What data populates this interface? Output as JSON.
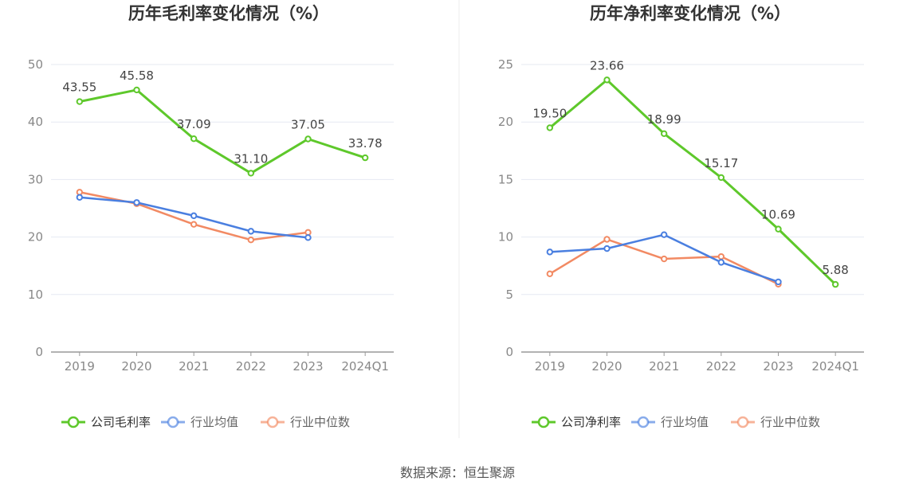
{
  "chart_data": [
    {
      "type": "line",
      "title": "历年毛利率变化情况（%）",
      "categories": [
        "2019",
        "2020",
        "2021",
        "2022",
        "2023",
        "2024Q1"
      ],
      "y_ticks": [
        "0",
        "10",
        "20",
        "30",
        "40",
        "50"
      ],
      "ylim": [
        0,
        50
      ],
      "grid": true,
      "legend_position": "bottom",
      "series": [
        {
          "name": "公司毛利率",
          "color": "#5ec82b",
          "values": [
            43.55,
            45.58,
            37.09,
            31.1,
            37.05,
            33.78
          ],
          "labels": [
            "43.55",
            "45.58",
            "37.09",
            "31.10",
            "37.05",
            "33.78"
          ]
        },
        {
          "name": "行业均值",
          "color": "#4a7fe0",
          "values": [
            26.9,
            26.0,
            23.7,
            21.0,
            19.9,
            null
          ]
        },
        {
          "name": "行业中位数",
          "color": "#f28a63",
          "values": [
            27.8,
            25.8,
            22.2,
            19.5,
            20.8,
            null
          ]
        }
      ]
    },
    {
      "type": "line",
      "title": "历年净利率变化情况（%）",
      "categories": [
        "2019",
        "2020",
        "2021",
        "2022",
        "2023",
        "2024Q1"
      ],
      "y_ticks": [
        "0",
        "5",
        "10",
        "15",
        "20",
        "25"
      ],
      "ylim": [
        0,
        25
      ],
      "grid": true,
      "legend_position": "bottom",
      "series": [
        {
          "name": "公司净利率",
          "color": "#5ec82b",
          "values": [
            19.5,
            23.66,
            18.99,
            15.17,
            10.69,
            5.88
          ],
          "labels": [
            "19.50",
            "23.66",
            "18.99",
            "15.17",
            "10.69",
            "5.88"
          ]
        },
        {
          "name": "行业均值",
          "color": "#4a7fe0",
          "values": [
            8.7,
            9.0,
            10.2,
            7.8,
            6.1,
            null
          ]
        },
        {
          "name": "行业中位数",
          "color": "#f28a63",
          "values": [
            6.8,
            9.8,
            8.1,
            8.3,
            5.9,
            null
          ]
        }
      ]
    }
  ],
  "footer": {
    "source": "数据来源：恒生聚源"
  }
}
